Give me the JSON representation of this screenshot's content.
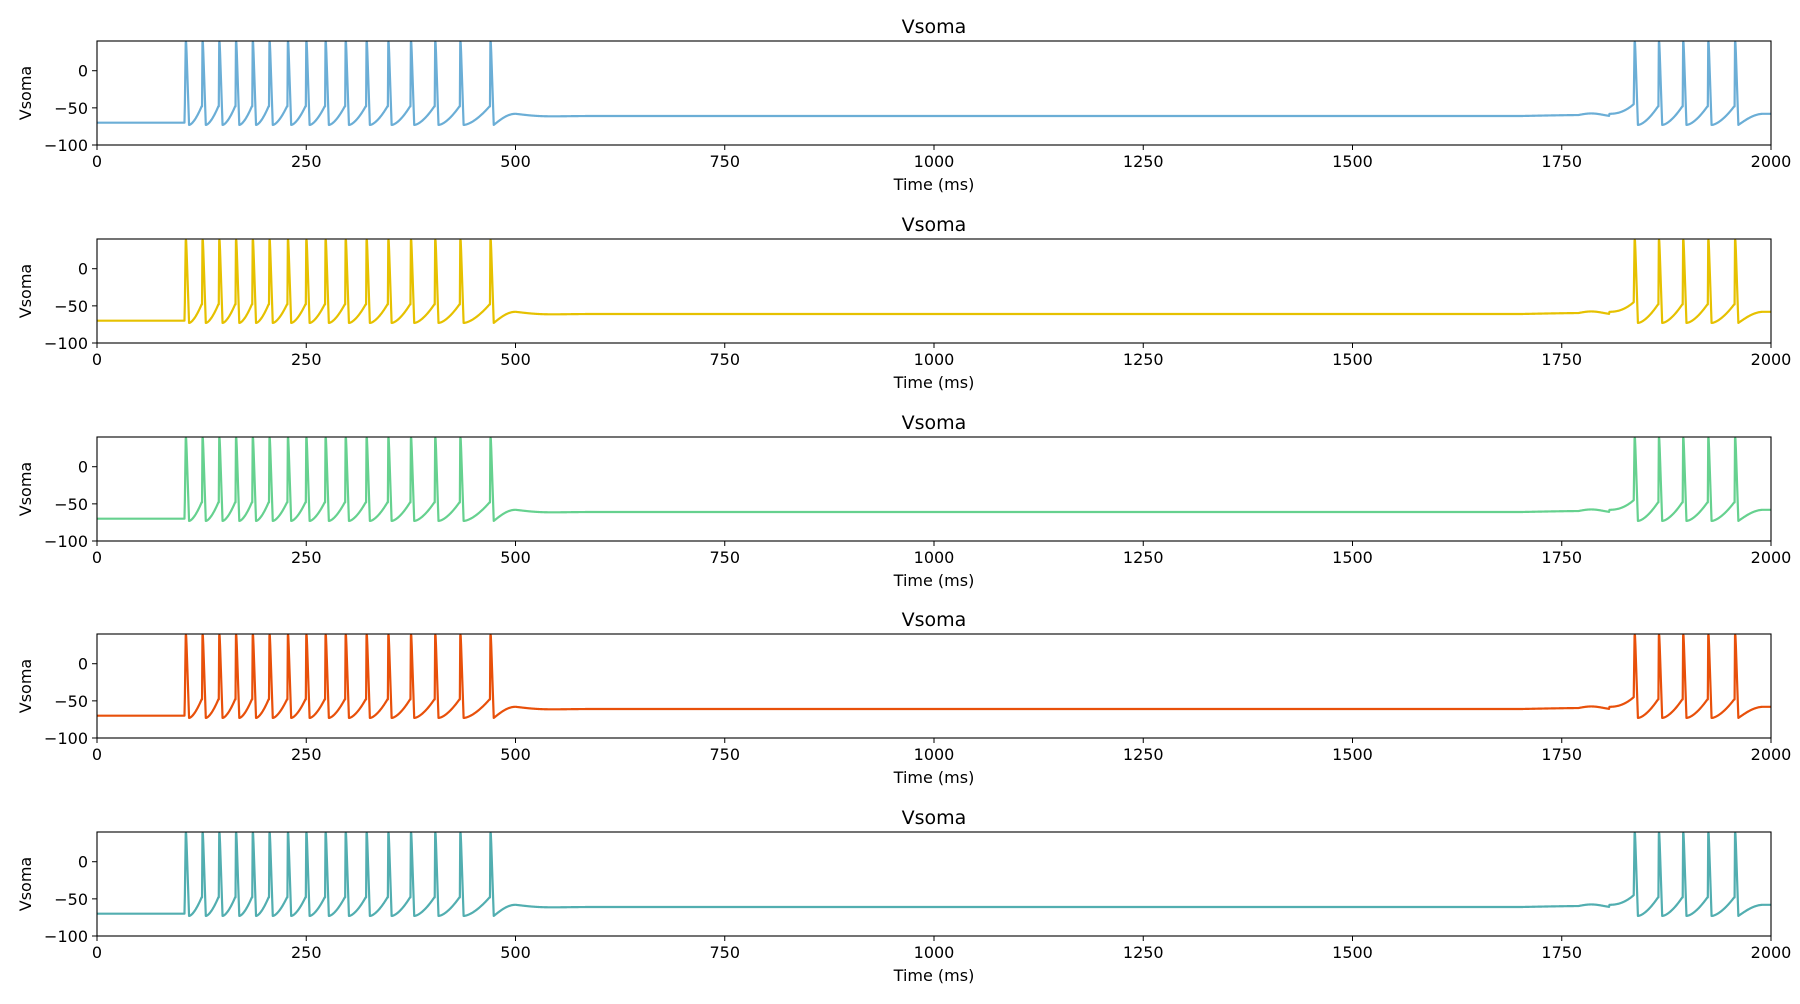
{
  "figure": {
    "panel_count": 5
  },
  "chart_data": [
    {
      "type": "line",
      "title": "Vsoma",
      "xlabel": "Time (ms)",
      "ylabel": "Vsoma",
      "xlim": [
        0,
        2000
      ],
      "ylim": [
        -100,
        40
      ],
      "xticks": [
        0,
        250,
        500,
        750,
        1000,
        1250,
        1500,
        1750,
        2000
      ],
      "yticks": [
        -100,
        -50,
        0
      ],
      "grid": false,
      "color": "#6baed6",
      "series": [
        {
          "resting_mV": -70,
          "spike_peak_mV": 38,
          "burst1_spike_times_ms": [
            106,
            126,
            146,
            166,
            186,
            206,
            228,
            250,
            273,
            297,
            322,
            348,
            375,
            404,
            434,
            470
          ],
          "burst2_spike_times_ms": [
            1837,
            1866,
            1895,
            1925,
            1957
          ],
          "plateau_mV": -61
        }
      ]
    },
    {
      "type": "line",
      "title": "Vsoma",
      "xlabel": "Time (ms)",
      "ylabel": "Vsoma",
      "xlim": [
        0,
        2000
      ],
      "ylim": [
        -100,
        40
      ],
      "xticks": [
        0,
        250,
        500,
        750,
        1000,
        1250,
        1500,
        1750,
        2000
      ],
      "yticks": [
        -100,
        -50,
        0
      ],
      "grid": false,
      "color": "#e6c100",
      "series": [
        {
          "resting_mV": -70,
          "spike_peak_mV": 38,
          "burst1_spike_times_ms": [
            106,
            126,
            146,
            166,
            186,
            206,
            228,
            250,
            273,
            297,
            322,
            348,
            375,
            404,
            434,
            470
          ],
          "burst2_spike_times_ms": [
            1837,
            1866,
            1895,
            1925,
            1957
          ],
          "plateau_mV": -61
        }
      ]
    },
    {
      "type": "line",
      "title": "Vsoma",
      "xlabel": "Time (ms)",
      "ylabel": "Vsoma",
      "xlim": [
        0,
        2000
      ],
      "ylim": [
        -100,
        40
      ],
      "xticks": [
        0,
        250,
        500,
        750,
        1000,
        1250,
        1500,
        1750,
        2000
      ],
      "yticks": [
        -100,
        -50,
        0
      ],
      "grid": false,
      "color": "#66d18f",
      "series": [
        {
          "resting_mV": -70,
          "spike_peak_mV": 38,
          "burst1_spike_times_ms": [
            106,
            126,
            146,
            166,
            186,
            206,
            228,
            250,
            273,
            297,
            322,
            348,
            375,
            404,
            434,
            470
          ],
          "burst2_spike_times_ms": [
            1837,
            1866,
            1895,
            1925,
            1957
          ],
          "plateau_mV": -61
        }
      ]
    },
    {
      "type": "line",
      "title": "Vsoma",
      "xlabel": "Time (ms)",
      "ylabel": "Vsoma",
      "xlim": [
        0,
        2000
      ],
      "ylim": [
        -100,
        40
      ],
      "xticks": [
        0,
        250,
        500,
        750,
        1000,
        1250,
        1500,
        1750,
        2000
      ],
      "yticks": [
        -100,
        -50,
        0
      ],
      "grid": false,
      "color": "#e8500a",
      "series": [
        {
          "resting_mV": -70,
          "spike_peak_mV": 38,
          "burst1_spike_times_ms": [
            106,
            126,
            146,
            166,
            186,
            206,
            228,
            250,
            273,
            297,
            322,
            348,
            375,
            404,
            434,
            470
          ],
          "burst2_spike_times_ms": [
            1837,
            1866,
            1895,
            1925,
            1957
          ],
          "plateau_mV": -61
        }
      ]
    },
    {
      "type": "line",
      "title": "Vsoma",
      "xlabel": "Time (ms)",
      "ylabel": "Vsoma",
      "xlim": [
        0,
        2000
      ],
      "ylim": [
        -100,
        40
      ],
      "xticks": [
        0,
        250,
        500,
        750,
        1000,
        1250,
        1500,
        1750,
        2000
      ],
      "yticks": [
        -100,
        -50,
        0
      ],
      "grid": false,
      "color": "#52aeb0",
      "series": [
        {
          "resting_mV": -70,
          "spike_peak_mV": 38,
          "burst1_spike_times_ms": [
            106,
            126,
            146,
            166,
            186,
            206,
            228,
            250,
            273,
            297,
            322,
            348,
            375,
            404,
            434,
            470
          ],
          "burst2_spike_times_ms": [
            1837,
            1866,
            1895,
            1925,
            1957
          ],
          "plateau_mV": -61
        }
      ]
    }
  ]
}
